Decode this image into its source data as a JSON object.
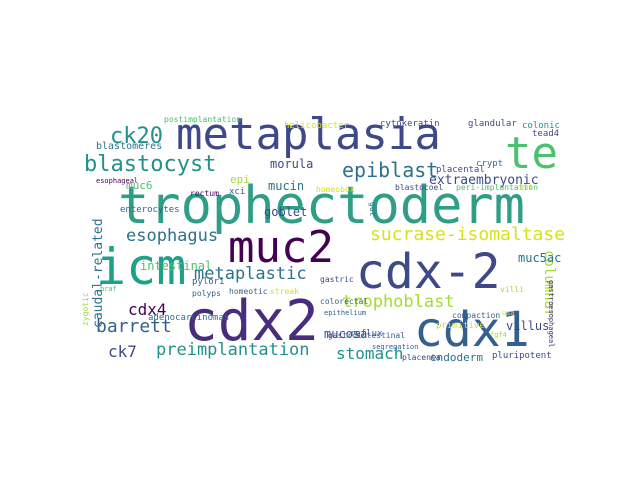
{
  "colors": {
    "background": "#ffffff",
    "yellow": "#d5e21a",
    "lime": "#a5db36",
    "green": "#4ac16d",
    "teal_green": "#1fa187",
    "teal": "#21918c",
    "blue_teal": "#2c728e",
    "blue": "#355f8d",
    "indigo": "#3e4989",
    "dark_indigo": "#472d7b",
    "purple": "#440154"
  },
  "words": [
    "trophectoderm",
    "metaplasia",
    "cdx2",
    "cdx-2",
    "cdx1",
    "icm",
    "muc2",
    "te",
    "ck20",
    "blastocyst",
    "epiblast",
    "sucrase-isomaltase",
    "esophagus",
    "metaplastic",
    "trophoblast",
    "barrett",
    "cdx4",
    "preimplantation",
    "ck7",
    "stomach",
    "columnar",
    "caudal-related",
    "extraembryonic",
    "muc5ac",
    "villus",
    "intestinal",
    "mucosa",
    "morula",
    "goblet",
    "mucin",
    "endoderm",
    "muc6",
    "epi",
    "blastomeres",
    "xci",
    "helicobacter",
    "postimplantation",
    "cytokeratin",
    "glandular",
    "colonic",
    "tead4",
    "crypt",
    "placental",
    "esophageal",
    "rectum",
    "homeobox",
    "blastocoel",
    "peri-implantation",
    "wnt",
    "gut",
    "pylori",
    "polyps",
    "enterocytes",
    "adenocarcinomas",
    "gastric",
    "primitive",
    "reflux",
    "fgf4",
    "braf",
    "homeotic",
    "streak",
    "villi",
    "colorectal",
    "epithelium",
    "gastrointestinal",
    "segregation",
    "zygotic",
    "pluripotent",
    "placenta",
    "compaction",
    "gastroesophageal",
    "usa"
  ]
}
